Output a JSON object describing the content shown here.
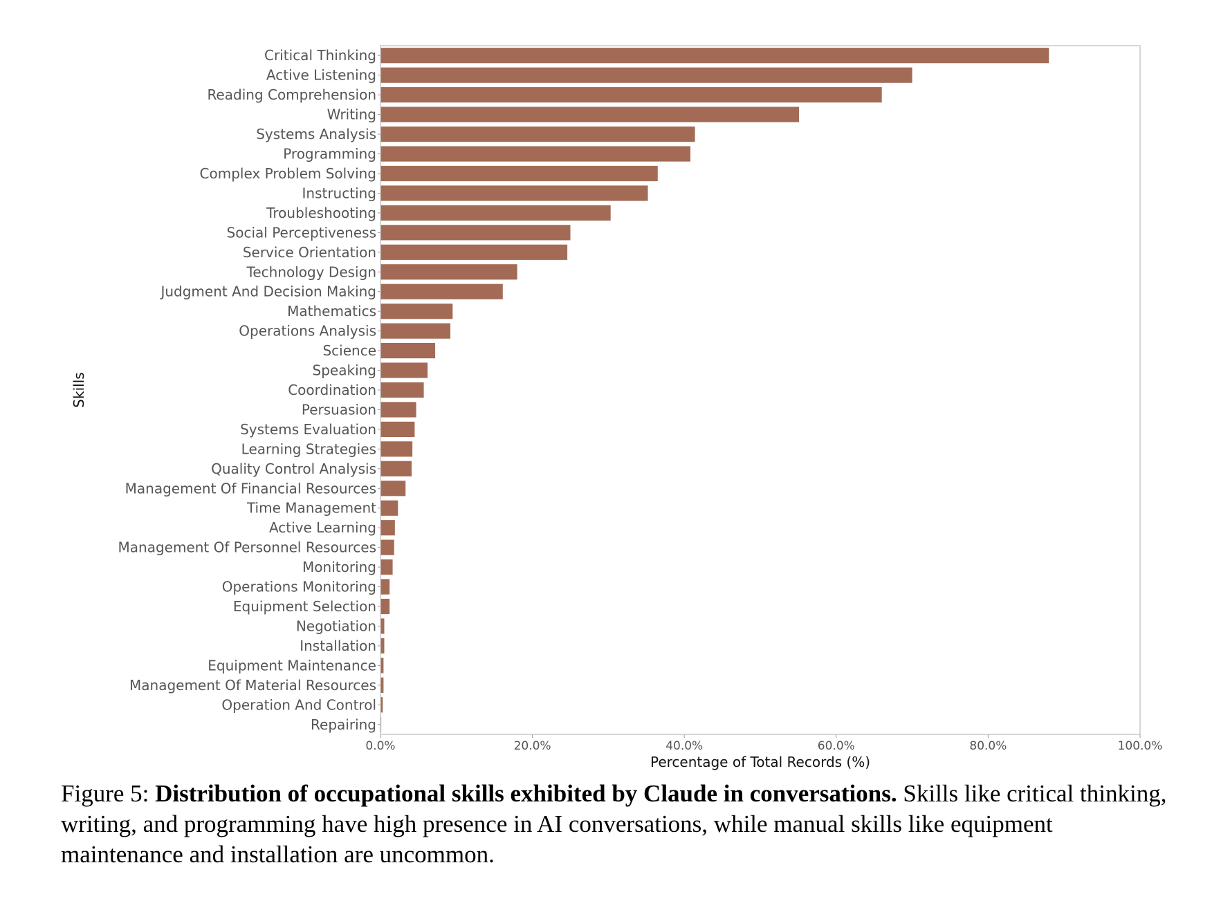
{
  "chart_data": {
    "type": "bar",
    "orientation": "horizontal",
    "xlabel": "Percentage of Total Records (%)",
    "ylabel": "Skills",
    "xlim": [
      0,
      100
    ],
    "xticks": [
      "0.0%",
      "20.0%",
      "40.0%",
      "60.0%",
      "80.0%",
      "100.0%"
    ],
    "bar_color": "#a36b55",
    "categories": [
      "Critical Thinking",
      "Active Listening",
      "Reading Comprehension",
      "Writing",
      "Systems Analysis",
      "Programming",
      "Complex Problem Solving",
      "Instructing",
      "Troubleshooting",
      "Social Perceptiveness",
      "Service Orientation",
      "Technology Design",
      "Judgment And Decision Making",
      "Mathematics",
      "Operations Analysis",
      "Science",
      "Speaking",
      "Coordination",
      "Persuasion",
      "Systems Evaluation",
      "Learning Strategies",
      "Quality Control Analysis",
      "Management Of Financial Resources",
      "Time Management",
      "Active Learning",
      "Management Of Personnel Resources",
      "Monitoring",
      "Operations Monitoring",
      "Equipment Selection",
      "Negotiation",
      "Installation",
      "Equipment Maintenance",
      "Management Of Material Resources",
      "Operation And Control",
      "Repairing"
    ],
    "values": [
      88.0,
      70.0,
      66.0,
      55.1,
      41.4,
      40.8,
      36.5,
      35.2,
      30.3,
      25.0,
      24.6,
      18.0,
      16.1,
      9.5,
      9.2,
      7.2,
      6.2,
      5.7,
      4.7,
      4.5,
      4.2,
      4.1,
      3.3,
      2.3,
      1.9,
      1.8,
      1.6,
      1.2,
      1.2,
      0.5,
      0.5,
      0.4,
      0.4,
      0.3,
      0.1
    ],
    "grid": false
  },
  "caption": {
    "prefix": "Figure 5: ",
    "bold": "Distribution of occupational skills exhibited by Claude in conversations.",
    "rest": " Skills like critical thinking, writing, and programming have high presence in AI conversations, while manual skills like equipment maintenance and installation are uncommon."
  }
}
